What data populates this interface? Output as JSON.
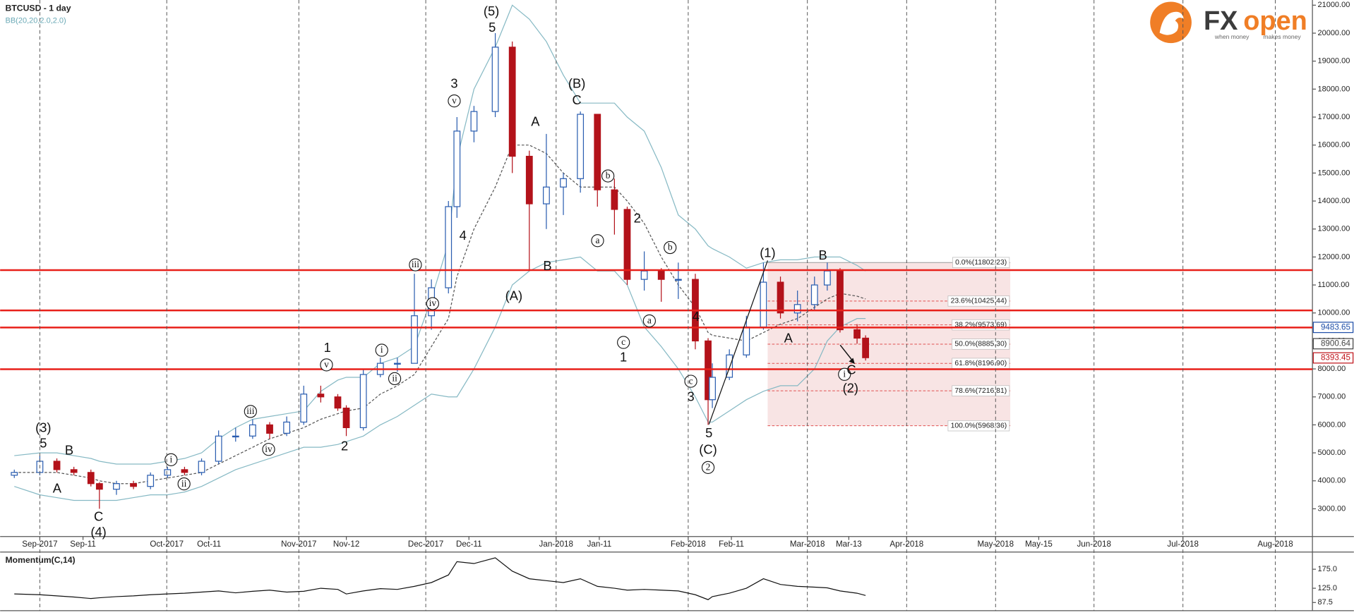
{
  "chart_data": [
    {
      "type": "candlestick",
      "title": "BTCUSD - 1 day",
      "subtitle": "BB(20,20,2.0,2.0)",
      "open": [
        4200,
        4300,
        4700,
        4400,
        4300,
        3900,
        3700,
        3900,
        3800,
        4200,
        4400,
        4300,
        4700,
        5600,
        5600,
        6000,
        5700,
        6100,
        7100,
        7000,
        6600,
        5900,
        7800,
        8200,
        8200,
        9900,
        10900,
        13800,
        16500,
        17200,
        19500,
        15600,
        13900,
        14500,
        14800,
        17100,
        14400,
        13700,
        11200,
        11500,
        11200,
        11200,
        9000,
        6900,
        7700,
        8500,
        9500,
        11100,
        10000,
        10300,
        11000,
        11500,
        9400,
        9100
      ],
      "high": [
        4400,
        4900,
        4800,
        4500,
        4400,
        3950,
        4000,
        4000,
        4300,
        4500,
        4500,
        4800,
        5800,
        5900,
        6200,
        6100,
        6300,
        7400,
        7400,
        7100,
        6700,
        8000,
        8400,
        8400,
        11400,
        11200,
        14000,
        17000,
        17400,
        20000,
        19700,
        15800,
        16400,
        15000,
        17200,
        17100,
        14800,
        13800,
        12200,
        11600,
        11800,
        11400,
        9100,
        8200,
        8700,
        9900,
        11800,
        11300,
        10800,
        11300,
        11800,
        11600,
        9600,
        9200
      ],
      "low": [
        4100,
        4200,
        4300,
        4200,
        3800,
        3000,
        3500,
        3700,
        3700,
        4100,
        4200,
        4200,
        4600,
        5400,
        5500,
        5500,
        5600,
        6000,
        6800,
        6500,
        5600,
        5800,
        7700,
        7900,
        8200,
        9400,
        10700,
        13400,
        16100,
        17000,
        15000,
        11500,
        13000,
        13500,
        14300,
        13800,
        12800,
        11000,
        10800,
        10400,
        10500,
        8700,
        6000,
        6600,
        7600,
        8400,
        9400,
        9800,
        9700,
        10100,
        10800,
        9300,
        8900,
        8300
      ],
      "close": [
        4300,
        4700,
        4400,
        4300,
        3900,
        3700,
        3900,
        3800,
        4200,
        4400,
        4300,
        4700,
        5600,
        5600,
        6000,
        5700,
        6100,
        7100,
        7000,
        6600,
        5900,
        7800,
        8200,
        8200,
        9900,
        10900,
        13800,
        16500,
        17200,
        19500,
        15600,
        13900,
        14500,
        14800,
        17100,
        14400,
        13700,
        11200,
        11500,
        11200,
        11200,
        9000,
        6900,
        7700,
        8500,
        9500,
        11100,
        10000,
        10300,
        11000,
        11500,
        9400,
        9100,
        8400
      ],
      "up_color": "#2a5db0",
      "down_color": "#b3121a",
      "bb_upper": [
        4900,
        5000,
        5000,
        4900,
        4800,
        4700,
        4600,
        4600,
        4600,
        4700,
        4800,
        5000,
        5500,
        5900,
        6200,
        6300,
        6400,
        6500,
        7200,
        7600,
        7700,
        7700,
        8200,
        8400,
        8800,
        10500,
        12500,
        15500,
        18000,
        19500,
        21000,
        20500,
        19700,
        18500,
        17500,
        17500,
        17500,
        17000,
        16500,
        15200,
        13500,
        13000,
        12400,
        12300,
        12000,
        11600,
        11800,
        11900,
        11900,
        12000,
        12000,
        12000,
        11700,
        11500
      ],
      "bb_middle": [
        4300,
        4300,
        4300,
        4200,
        4100,
        4000,
        3900,
        3900,
        4000,
        4100,
        4200,
        4300,
        4600,
        4900,
        5200,
        5500,
        5700,
        5900,
        6200,
        6400,
        6500,
        6600,
        7100,
        7400,
        7800,
        8800,
        9800,
        11300,
        13000,
        14500,
        16000,
        16000,
        15700,
        15000,
        14500,
        14500,
        14500,
        14000,
        13200,
        12000,
        11000,
        10200,
        9300,
        9200,
        9100,
        9000,
        9300,
        9600,
        9800,
        10200,
        10500,
        10700,
        10600,
        10500
      ],
      "bb_lower": [
        3800,
        3500,
        3400,
        3300,
        3300,
        3300,
        3300,
        3400,
        3500,
        3500,
        3600,
        3800,
        4100,
        4400,
        4600,
        4800,
        5000,
        5200,
        5200,
        5300,
        5400,
        5600,
        6000,
        6300,
        6700,
        7100,
        7000,
        7000,
        8000,
        9500,
        11000,
        11500,
        11800,
        11900,
        12000,
        11500,
        11500,
        11000,
        9500,
        8800,
        8000,
        7000,
        6100,
        6100,
        6500,
        6900,
        7200,
        7400,
        7400,
        8000,
        9000,
        9500,
        9800,
        9800
      ],
      "band_color": "#86b9c4",
      "levels": [
        11530,
        10090,
        9480,
        7990
      ],
      "level_color": "#e8201a",
      "fib": [
        {
          "value": 11802.23,
          "label": "0.0%(11802.23)"
        },
        {
          "value": 10425.44,
          "label": "23.6%(10425.44)"
        },
        {
          "value": 9573.69,
          "label": "38.2%(9573.69)"
        },
        {
          "value": 8885.3,
          "label": "50.0%(8885.30)"
        },
        {
          "value": 8196.9,
          "label": "61.8%(8196.90)"
        },
        {
          "value": 7216.81,
          "label": "78.6%(7216.81)"
        },
        {
          "value": 5968.36,
          "label": "100.0%(5968.36)"
        }
      ],
      "price_labels": [
        {
          "value": 9483.65,
          "label": "9483.65",
          "color": "#1f4fa8"
        },
        {
          "value": 8900.64,
          "label": "8900.64",
          "color": "#444444"
        },
        {
          "value": 8393.45,
          "label": "8393.45",
          "color": "#c0141b"
        }
      ],
      "ylim": [
        2010,
        21185
      ],
      "yticks": [
        {
          "value": 3000,
          "label": "3000.00"
        },
        {
          "value": 4000,
          "label": "4000.00"
        },
        {
          "value": 5000,
          "label": "5000.00"
        },
        {
          "value": 6000,
          "label": "6000.00"
        },
        {
          "value": 7000,
          "label": "7000.00"
        },
        {
          "value": 8000,
          "label": "8000.00"
        },
        {
          "value": 9000,
          "label": "9000.00"
        },
        {
          "value": 10000,
          "label": "10000.00"
        },
        {
          "value": 11000,
          "label": "11000.00"
        },
        {
          "value": 12000,
          "label": "12000.00"
        },
        {
          "value": 13000,
          "label": "13000.00"
        },
        {
          "value": 14000,
          "label": "14000.00"
        },
        {
          "value": 15000,
          "label": "15000.00"
        },
        {
          "value": 16000,
          "label": "16000.00"
        },
        {
          "value": 17000,
          "label": "17000.00"
        },
        {
          "value": 18000,
          "label": "18000.00"
        },
        {
          "value": 19000,
          "label": "19000.00"
        },
        {
          "value": 20000,
          "label": "20000.00"
        },
        {
          "value": 21000,
          "label": "21000.00"
        }
      ],
      "x_labels": [
        "Sep-2017",
        "Sep-11",
        "Oct-2017",
        "Oct-11",
        "Nov-2017",
        "Nov-12",
        "Dec-2017",
        "Dec-11",
        "Jan-2018",
        "Jan-11",
        "Feb-2018",
        "Feb-11",
        "Mar-2018",
        "Mar-13",
        "Apr-2018",
        "May-2018",
        "May-15",
        "Jun-2018",
        "Jul-2018",
        "Aug-2018"
      ],
      "annotations": [
        {
          "text": "(3)"
        },
        {
          "text": "5"
        },
        {
          "text": "B"
        },
        {
          "text": "A"
        },
        {
          "text": "C"
        },
        {
          "text": "(4)"
        },
        {
          "text": "i",
          "circled": true
        },
        {
          "text": "ii",
          "circled": true
        },
        {
          "text": "iii",
          "circled": true
        },
        {
          "text": "iv",
          "circled": true
        },
        {
          "text": "v",
          "circled": true
        },
        {
          "text": "1"
        },
        {
          "text": "2"
        },
        {
          "text": "i",
          "circled": true
        },
        {
          "text": "ii",
          "circled": true
        },
        {
          "text": "iii",
          "circled": true
        },
        {
          "text": "iv",
          "circled": true
        },
        {
          "text": "v",
          "circled": true
        },
        {
          "text": "3"
        },
        {
          "text": "4"
        },
        {
          "text": "(5)"
        },
        {
          "text": "5"
        },
        {
          "text": "A"
        },
        {
          "text": "B"
        },
        {
          "text": "(A)"
        },
        {
          "text": "(B)"
        },
        {
          "text": "C"
        },
        {
          "text": "a",
          "circled": true
        },
        {
          "text": "b",
          "circled": true
        },
        {
          "text": "2"
        },
        {
          "text": "c",
          "circled": true
        },
        {
          "text": "1"
        },
        {
          "text": "a",
          "circled": true
        },
        {
          "text": "b",
          "circled": true
        },
        {
          "text": "4"
        },
        {
          "text": "c",
          "circled": true
        },
        {
          "text": "3"
        },
        {
          "text": "5"
        },
        {
          "text": "(C)"
        },
        {
          "text": "2",
          "circled": true
        },
        {
          "text": "(1)"
        },
        {
          "text": "B"
        },
        {
          "text": "A"
        },
        {
          "text": "i",
          "circled": true
        },
        {
          "text": "C"
        },
        {
          "text": "(2)"
        }
      ]
    },
    {
      "type": "line",
      "title": "Momentum(C,14)",
      "values": [
        110,
        108,
        105,
        102,
        98,
        100,
        103,
        105,
        108,
        110,
        112,
        115,
        118,
        113,
        117,
        120,
        115,
        117,
        125,
        122,
        110,
        118,
        124,
        122,
        130,
        140,
        160,
        195,
        190,
        205,
        170,
        150,
        145,
        140,
        150,
        130,
        125,
        120,
        122,
        120,
        118,
        108,
        95,
        103,
        112,
        125,
        150,
        135,
        130,
        128,
        126,
        118,
        112,
        106
      ],
      "color": "#111111",
      "ylim": [
        66,
        218
      ],
      "yticks": [
        87.5,
        {
          "value": 125,
          "label": "125.0"
        },
        {
          "value": 175,
          "label": "175.0"
        }
      ]
    }
  ],
  "logo": {
    "brand_a": "FX",
    "brand_b": "open",
    "tagline_a": "when money",
    "tagline_b": "makes money"
  }
}
